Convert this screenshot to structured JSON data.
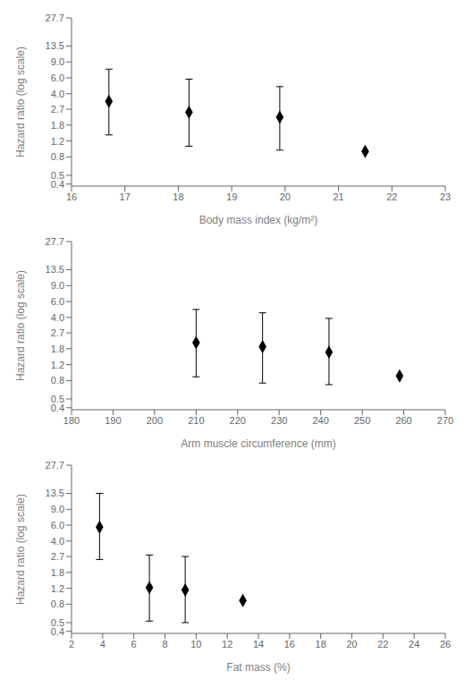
{
  "chart_data": [
    {
      "type": "scatter",
      "xlabel": "Body mass index (kg/m²)",
      "ylabel": "Hazard ratio (log scale)",
      "x": [
        16.7,
        18.2,
        19.9,
        21.5
      ],
      "values": [
        3.3,
        2.5,
        2.2,
        0.92
      ],
      "yerr_lo": [
        1.4,
        1.05,
        0.95,
        0.92
      ],
      "yerr_hi": [
        7.5,
        5.8,
        4.8,
        0.92
      ],
      "xlim": [
        16,
        23
      ],
      "xticks": [
        16,
        17,
        18,
        19,
        20,
        21,
        22,
        23
      ],
      "ylim": [
        0.38,
        27.7
      ],
      "yticks": [
        0.4,
        0.5,
        0.8,
        1.2,
        1.8,
        2.7,
        {
          "value": 4,
          "label": "4.0"
        },
        {
          "value": 6,
          "label": "6.0"
        },
        {
          "value": 9,
          "label": "9.0"
        },
        13.5,
        27.7
      ],
      "log": "y",
      "color": "#000000",
      "marker": "diamond"
    },
    {
      "type": "scatter",
      "xlabel": "Arm muscle circumference (mm)",
      "ylabel": "Hazard ratio (log scale)",
      "x": [
        210,
        226,
        242,
        259
      ],
      "values": [
        2.1,
        1.9,
        1.65,
        0.9
      ],
      "yerr_lo": [
        0.88,
        0.75,
        0.72,
        0.9
      ],
      "yerr_hi": [
        4.9,
        4.5,
        3.9,
        0.9
      ],
      "xlim": [
        180,
        270
      ],
      "xticks": [
        180,
        190,
        200,
        210,
        220,
        230,
        240,
        250,
        260,
        270
      ],
      "ylim": [
        0.38,
        27.7
      ],
      "yticks": [
        0.4,
        0.5,
        0.8,
        1.2,
        1.8,
        2.7,
        {
          "value": 4,
          "label": "4.0"
        },
        {
          "value": 6,
          "label": "6.0"
        },
        {
          "value": 9,
          "label": "9.0"
        },
        13.5,
        27.7
      ],
      "log": "y",
      "color": "#000000",
      "marker": "diamond"
    },
    {
      "type": "scatter",
      "xlabel": "Fat mass (%)",
      "ylabel": "Hazard ratio (log scale)",
      "x": [
        3.8,
        7.0,
        9.3,
        13.0
      ],
      "values": [
        5.7,
        1.22,
        1.15,
        0.88
      ],
      "yerr_lo": [
        2.5,
        0.52,
        0.5,
        0.88
      ],
      "yerr_hi": [
        13.5,
        2.8,
        2.7,
        0.88
      ],
      "xlim": [
        2,
        26
      ],
      "xticks": [
        2,
        4,
        6,
        8,
        10,
        12,
        14,
        16,
        18,
        20,
        22,
        24,
        26
      ],
      "ylim": [
        0.38,
        27.7
      ],
      "yticks": [
        0.4,
        0.5,
        0.8,
        1.2,
        1.8,
        2.7,
        {
          "value": 4,
          "label": "4.0"
        },
        {
          "value": 6,
          "label": "6.0"
        },
        {
          "value": 9,
          "label": "9.0"
        },
        13.5,
        27.7
      ],
      "log": "y",
      "color": "#000000",
      "marker": "diamond"
    }
  ]
}
